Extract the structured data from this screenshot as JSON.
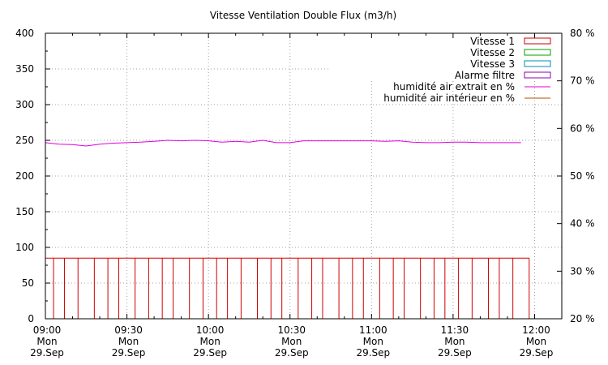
{
  "chart_data": {
    "type": "line",
    "title": "Vitesse Ventilation Double Flux (m3/h)",
    "left_axis": {
      "ylim": [
        0,
        400
      ],
      "ticks": [
        0,
        50,
        100,
        150,
        200,
        250,
        300,
        350,
        400
      ]
    },
    "right_axis": {
      "ylim": [
        20,
        80
      ],
      "ticks": [
        20,
        30,
        40,
        50,
        60,
        70,
        80
      ],
      "tick_labels": [
        "20 %",
        "30 %",
        "40 %",
        "50 %",
        "60 %",
        "70 %",
        "80 %"
      ]
    },
    "x_axis": {
      "unit": "minutes",
      "xlim": [
        0,
        190
      ],
      "ticks": [
        0,
        30,
        60,
        90,
        120,
        150,
        180
      ],
      "tick_labels": [
        {
          "time": "09:00",
          "day": "Mon",
          "date": "29.Sep"
        },
        {
          "time": "09:30",
          "day": "Mon",
          "date": "29.Sep"
        },
        {
          "time": "10:00",
          "day": "Mon",
          "date": "29.Sep"
        },
        {
          "time": "10:30",
          "day": "Mon",
          "date": "29.Sep"
        },
        {
          "time": "11:00",
          "day": "Mon",
          "date": "29.Sep"
        },
        {
          "time": "11:30",
          "day": "Mon",
          "date": "29.Sep"
        },
        {
          "time": "12:00",
          "day": "Mon",
          "date": "29.Sep"
        }
      ]
    },
    "grid": true,
    "legend_position": "top-right",
    "legend": [
      {
        "name": "Vitesse 1",
        "color": "#d00000",
        "style": "box"
      },
      {
        "name": "Vitesse 2",
        "color": "#00a000",
        "style": "box"
      },
      {
        "name": "Vitesse 3",
        "color": "#008fa8",
        "style": "box"
      },
      {
        "name": "Alarme filtre",
        "color": "#9000b0",
        "style": "box"
      },
      {
        "name": "humidité air extrait en %",
        "color": "#e000e0",
        "style": "line"
      },
      {
        "name": "humidité air intérieur en %",
        "color": "#b05000",
        "style": "line"
      }
    ],
    "series": [
      {
        "name": "Vitesse 1",
        "type": "impulse-step",
        "color": "#d00000",
        "value": 85,
        "x_start": 0,
        "x_end": 178,
        "impulses": [
          0,
          3,
          7,
          12,
          18,
          23,
          27,
          33,
          38,
          43,
          47,
          53,
          58,
          63,
          67,
          72,
          78,
          83,
          87,
          93,
          98,
          102,
          108,
          113,
          117,
          123,
          128,
          132,
          138,
          143,
          147,
          152,
          157,
          163,
          167,
          172,
          178
        ]
      },
      {
        "name": "humidité air extrait en %",
        "type": "line",
        "axis": "right",
        "color": "#e000e0",
        "x": [
          0,
          5,
          10,
          15,
          20,
          25,
          30,
          35,
          40,
          45,
          50,
          55,
          60,
          65,
          70,
          75,
          80,
          85,
          90,
          95,
          100,
          105,
          110,
          115,
          120,
          125,
          130,
          135,
          140,
          145,
          150,
          155,
          160,
          165,
          170,
          175
        ],
        "y": [
          57.0,
          56.7,
          56.6,
          56.3,
          56.7,
          56.9,
          57.0,
          57.1,
          57.3,
          57.5,
          57.4,
          57.5,
          57.4,
          57.1,
          57.3,
          57.1,
          57.5,
          57.0,
          57.0,
          57.4,
          57.4,
          57.4,
          57.4,
          57.4,
          57.4,
          57.3,
          57.4,
          57.1,
          57.0,
          57.0,
          57.1,
          57.1,
          57.0,
          57.0,
          57.0,
          57.0
        ]
      }
    ]
  }
}
